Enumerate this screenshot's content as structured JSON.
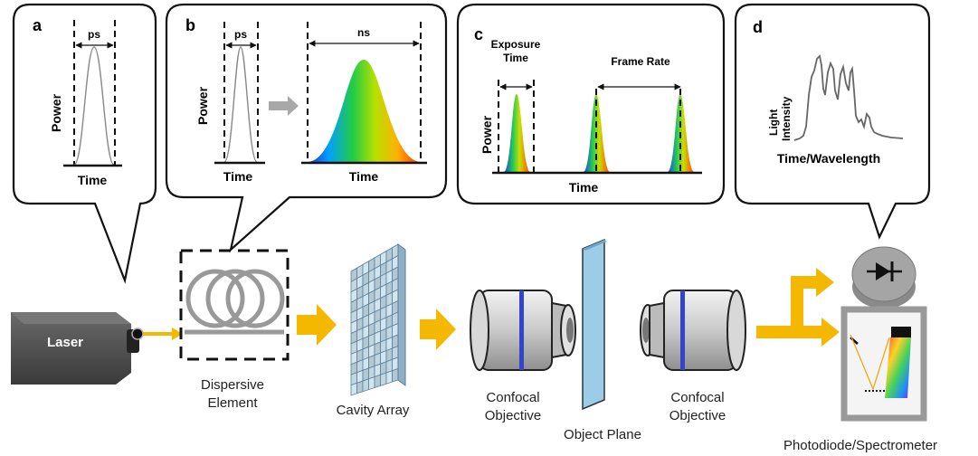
{
  "panels": {
    "a": {
      "letter": "a",
      "pulse_label": "ps",
      "y_label": "Power",
      "x_label": "Time"
    },
    "b": {
      "letter": "b",
      "pulse_label": "ps",
      "stretched_label": "ns",
      "y_label": "Power",
      "x_label_left": "Time",
      "x_label_right": "Time"
    },
    "c": {
      "letter": "c",
      "exposure_label_1": "Exposure",
      "exposure_label_2": "Time",
      "frame_rate_label": "Frame Rate",
      "y_label": "Power",
      "x_label": "Time"
    },
    "d": {
      "letter": "d",
      "y_label_1": "Light",
      "y_label_2": "Intensity",
      "x_label": "Time/Wavelength"
    }
  },
  "components": {
    "laser": "Laser",
    "dispersive_1": "Dispersive",
    "dispersive_2": "Element",
    "cavity_array": "Cavity Array",
    "objective_left_1": "Confocal",
    "objective_left_2": "Objective",
    "object_plane": "Object Plane",
    "objective_right_1": "Confocal",
    "objective_right_2": "Objective",
    "detector": "Photodiode/Spectrometer"
  },
  "colors": {
    "arrow": "#f5b800",
    "plane": "#9ccde8",
    "laser_body": "#555555",
    "bubble_stroke": "#111111"
  }
}
